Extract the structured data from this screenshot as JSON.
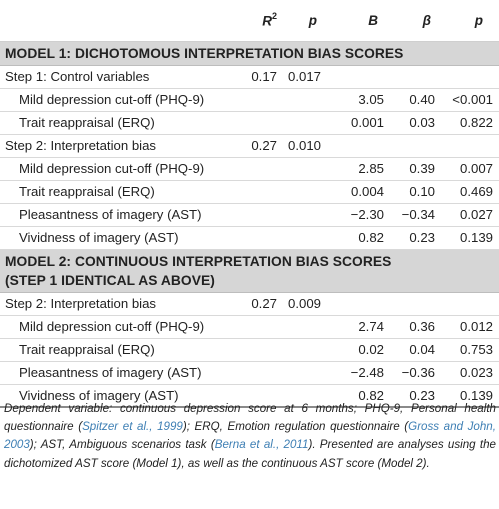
{
  "header": {
    "r2_base": "R",
    "r2_sup": "2",
    "p": "p",
    "B": "B",
    "beta": "β",
    "p2": "p"
  },
  "models": [
    {
      "title": "MODEL 1: DICHOTOMOUS INTERPRETATION BIAS SCORES",
      "rows": [
        {
          "label": "Step 1: Control variables",
          "r2": "0.17",
          "p": "0.017",
          "B": "",
          "beta": "",
          "p2": ""
        },
        {
          "label": "Mild depression cut-off (PHQ-9)",
          "r2": "",
          "p": "",
          "B": "3.05",
          "beta": "0.40",
          "p2": "<0.001"
        },
        {
          "label": "Trait reappraisal (ERQ)",
          "r2": "",
          "p": "",
          "B": "0.001",
          "beta": "0.03",
          "p2": "0.822"
        },
        {
          "label": "Step 2: Interpretation bias",
          "r2": "0.27",
          "p": "0.010",
          "B": "",
          "beta": "",
          "p2": ""
        },
        {
          "label": "Mild depression cut-off (PHQ-9)",
          "r2": "",
          "p": "",
          "B": "2.85",
          "beta": "0.39",
          "p2": "0.007"
        },
        {
          "label": "Trait reappraisal (ERQ)",
          "r2": "",
          "p": "",
          "B": "0.004",
          "beta": "0.10",
          "p2": "0.469"
        },
        {
          "label": "Pleasantness of imagery (AST)",
          "r2": "",
          "p": "",
          "B": "−2.30",
          "beta": "−0.34",
          "p2": "0.027"
        },
        {
          "label": "Vividness of imagery (AST)",
          "r2": "",
          "p": "",
          "B": "0.82",
          "beta": "0.23",
          "p2": "0.139"
        }
      ]
    },
    {
      "title_line1": "MODEL 2: CONTINUOUS INTERPRETATION BIAS SCORES",
      "title_line2": "(STEP 1 IDENTICAL AS ABOVE)",
      "rows": [
        {
          "label": "Step 2: Interpretation bias",
          "r2": "0.27",
          "p": "0.009",
          "B": "",
          "beta": "",
          "p2": ""
        },
        {
          "label": "Mild depression cut-off (PHQ-9)",
          "r2": "",
          "p": "",
          "B": "2.74",
          "beta": "0.36",
          "p2": "0.012"
        },
        {
          "label": "Trait reappraisal (ERQ)",
          "r2": "",
          "p": "",
          "B": "0.02",
          "beta": "0.04",
          "p2": "0.753"
        },
        {
          "label": "Pleasantness of imagery (AST)",
          "r2": "",
          "p": "",
          "B": "−2.48",
          "beta": "−0.36",
          "p2": "0.023"
        },
        {
          "label": "Vividness of imagery (AST)",
          "r2": "",
          "p": "",
          "B": "0.82",
          "beta": "0.23",
          "p2": "0.139"
        }
      ]
    }
  ],
  "note": {
    "t1": "Dependent variable: continuous depression score at 6 months; PHQ-9, Personal health questionnaire (",
    "ref1": "Spitzer et al., 1999",
    "t2": "); ERQ, Emotion regulation questionnaire (",
    "ref2": "Gross and John, 2003",
    "t3": "); AST, Ambiguous scenarios task (",
    "ref3": "Berna et al., 2011",
    "t4": "). Presented are analyses using the dichotomized AST score (Model 1), as well as the continuous AST score (Model 2)."
  },
  "colors": {
    "section_band": "#d6d6d6",
    "reference_link": "#3e7fb4",
    "text": "#222222"
  }
}
